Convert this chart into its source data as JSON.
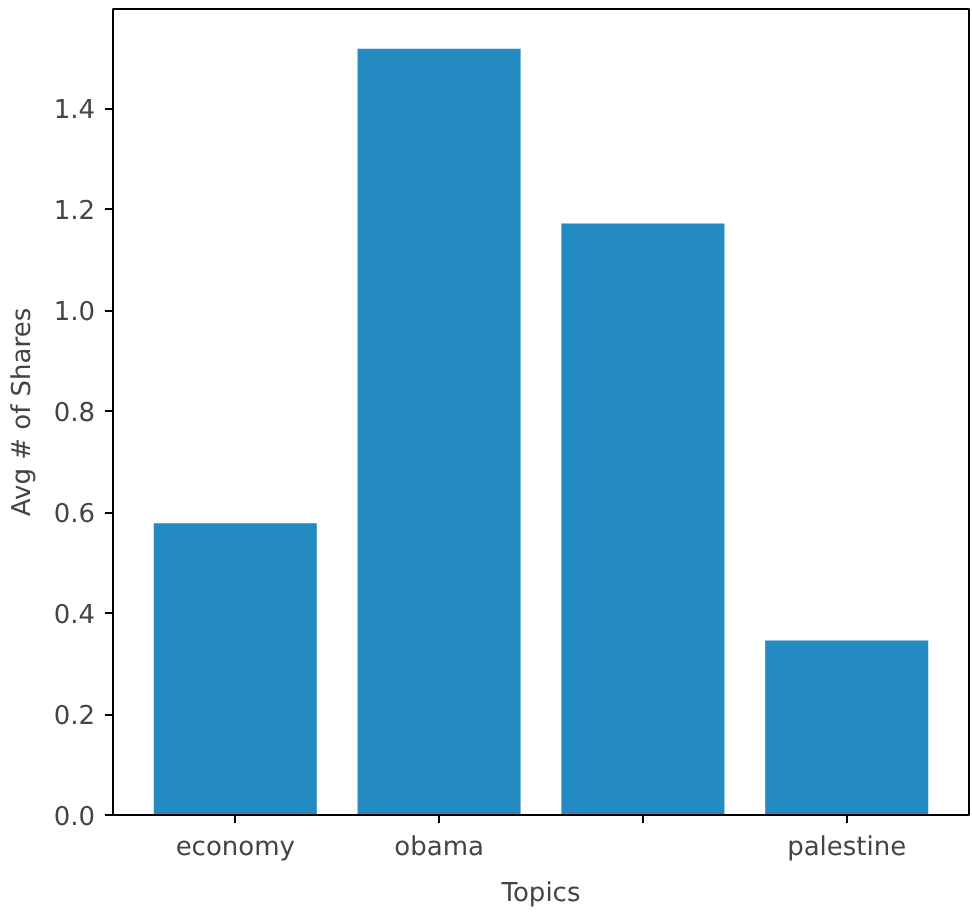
{
  "chart_data": {
    "type": "bar",
    "xlabel": "Topics",
    "ylabel": "Avg # of Shares",
    "categories": [
      "economy",
      "obama",
      null,
      "palestine"
    ],
    "values": [
      0.578,
      1.518,
      1.172,
      0.346
    ],
    "color": "#238bc2",
    "ylim": [
      0,
      1.597
    ],
    "yticks": [
      {
        "value": 0,
        "label": "0.0"
      },
      {
        "value": 0.2,
        "label": "0.2"
      },
      {
        "value": 0.4,
        "label": "0.4"
      },
      {
        "value": 0.6,
        "label": "0.6"
      },
      {
        "value": 0.8,
        "label": "0.8"
      },
      {
        "value": 1.0,
        "label": "1.0"
      },
      {
        "value": 1.2,
        "label": "1.2"
      },
      {
        "value": 1.4,
        "label": "1.4"
      }
    ],
    "grid": false
  }
}
